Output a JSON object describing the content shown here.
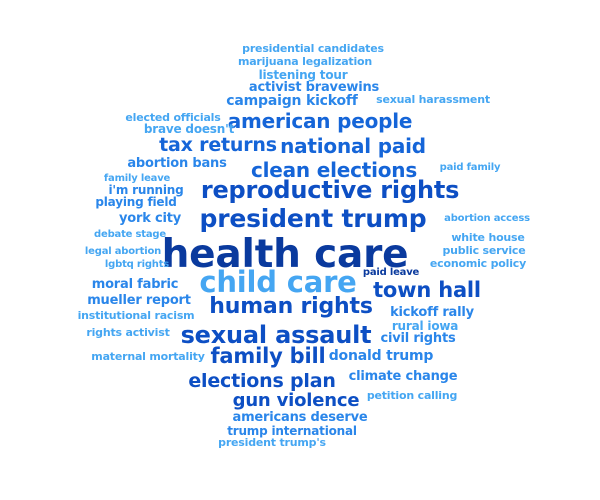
{
  "colors": {
    "background": "#ffffff",
    "tier1": "#0a3a9e",
    "tier2": "#0d4fc4",
    "tier3": "#1565d8",
    "tier4": "#2a86ea",
    "tier5": "#45a6f2"
  },
  "words": [
    {
      "text": "presidential candidates",
      "tier": 5
    },
    {
      "text": "marijuana legalization",
      "tier": 5
    },
    {
      "text": "listening tour",
      "tier": 5
    },
    {
      "text": "activist bravewins",
      "tier": 4
    },
    {
      "text": "campaign kickoff",
      "tier": 4
    },
    {
      "text": "sexual harassment",
      "tier": 5
    },
    {
      "text": "elected officials",
      "tier": 5
    },
    {
      "text": "american people",
      "tier": 3
    },
    {
      "text": "brave doesn't",
      "tier": 5
    },
    {
      "text": "tax returns",
      "tier": 3
    },
    {
      "text": "national paid",
      "tier": 3
    },
    {
      "text": "abortion bans",
      "tier": 4
    },
    {
      "text": "clean elections",
      "tier": 3
    },
    {
      "text": "paid family",
      "tier": 5
    },
    {
      "text": "family leave",
      "tier": 5
    },
    {
      "text": "i'm running",
      "tier": 4
    },
    {
      "text": "reproductive rights",
      "tier": 2
    },
    {
      "text": "playing field",
      "tier": 4
    },
    {
      "text": "york city",
      "tier": 4
    },
    {
      "text": "president trump",
      "tier": 2
    },
    {
      "text": "abortion access",
      "tier": 5
    },
    {
      "text": "debate stage",
      "tier": 5
    },
    {
      "text": "white house",
      "tier": 5
    },
    {
      "text": "health care",
      "tier": 1
    },
    {
      "text": "legal abortion",
      "tier": 5
    },
    {
      "text": "public service",
      "tier": 5
    },
    {
      "text": "lgbtq rights",
      "tier": 5
    },
    {
      "text": "economic policy",
      "tier": 5
    },
    {
      "text": "paid leave",
      "tier": 1
    },
    {
      "text": "child care",
      "tier": 5
    },
    {
      "text": "moral fabric",
      "tier": 4
    },
    {
      "text": "town hall",
      "tier": 2
    },
    {
      "text": "mueller report",
      "tier": 4
    },
    {
      "text": "human rights",
      "tier": 2
    },
    {
      "text": "kickoff rally",
      "tier": 4
    },
    {
      "text": "institutional racism",
      "tier": 5
    },
    {
      "text": "rural iowa",
      "tier": 5
    },
    {
      "text": "rights activist",
      "tier": 5
    },
    {
      "text": "sexual assault",
      "tier": 2
    },
    {
      "text": "civil rights",
      "tier": 4
    },
    {
      "text": "maternal mortality",
      "tier": 5
    },
    {
      "text": "family bill",
      "tier": 2
    },
    {
      "text": "donald trump",
      "tier": 4
    },
    {
      "text": "elections plan",
      "tier": 2
    },
    {
      "text": "climate change",
      "tier": 4
    },
    {
      "text": "gun violence",
      "tier": 2
    },
    {
      "text": "petition calling",
      "tier": 5
    },
    {
      "text": "americans deserve",
      "tier": 4
    },
    {
      "text": "trump international",
      "tier": 4
    },
    {
      "text": "president trump's",
      "tier": 5
    }
  ]
}
